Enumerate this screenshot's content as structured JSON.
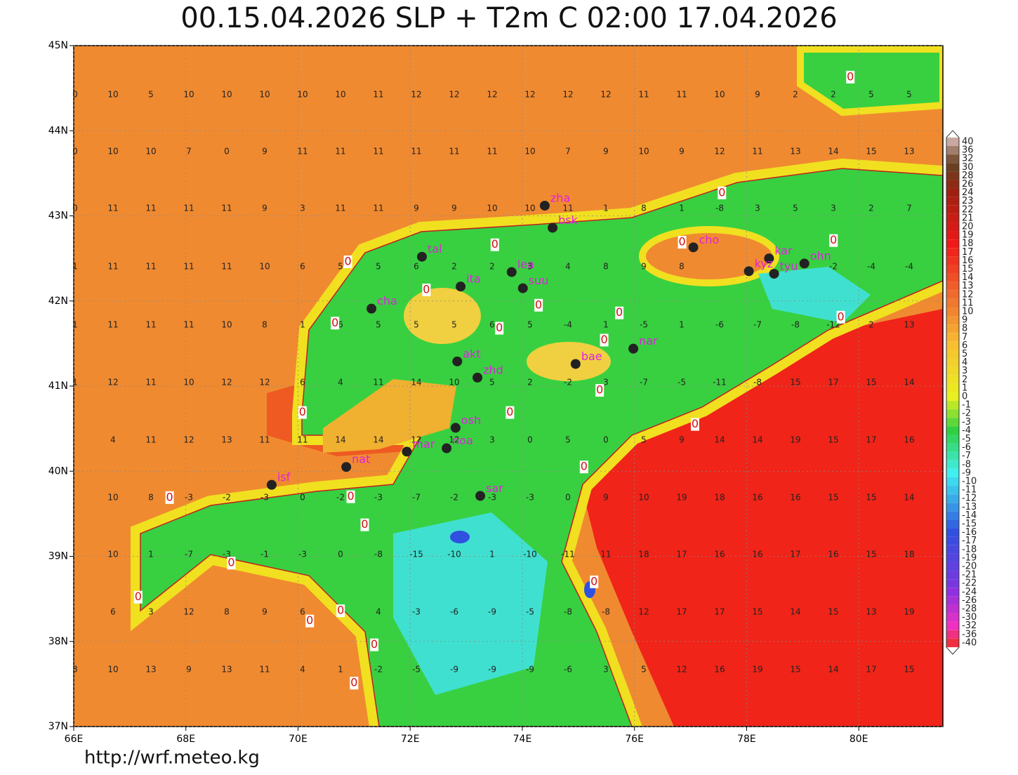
{
  "title": "00.15.04.2026 SLP + T2m C 02:00 17.04.2026",
  "footer": "http://wrf.meteo.kg",
  "map": {
    "xlim": [
      66,
      81.5
    ],
    "ylim": [
      37,
      45
    ],
    "xticks": [
      {
        "value": 66,
        "label": "66E"
      },
      {
        "value": 68,
        "label": "68E"
      },
      {
        "value": 70,
        "label": "70E"
      },
      {
        "value": 72,
        "label": "72E"
      },
      {
        "value": 74,
        "label": "74E"
      },
      {
        "value": 76,
        "label": "76E"
      },
      {
        "value": 78,
        "label": "78E"
      },
      {
        "value": 80,
        "label": "80E"
      }
    ],
    "yticks": [
      {
        "value": 37,
        "label": "37N"
      },
      {
        "value": 38,
        "label": "38N"
      },
      {
        "value": 39,
        "label": "39N"
      },
      {
        "value": 40,
        "label": "40N"
      },
      {
        "value": 41,
        "label": "41N"
      },
      {
        "value": 42,
        "label": "42N"
      },
      {
        "value": 43,
        "label": "43N"
      },
      {
        "value": 44,
        "label": "44N"
      },
      {
        "value": 45,
        "label": "45N"
      }
    ],
    "cities": [
      {
        "name": "zha",
        "lon": 74.4,
        "lat": 43.12
      },
      {
        "name": "bsk",
        "lon": 74.54,
        "lat": 42.86
      },
      {
        "name": "tal",
        "lon": 72.21,
        "lat": 42.52
      },
      {
        "name": "lea",
        "lon": 73.81,
        "lat": 42.34
      },
      {
        "name": "ita",
        "lon": 72.9,
        "lat": 42.17
      },
      {
        "name": "suu",
        "lon": 74.01,
        "lat": 42.15
      },
      {
        "name": "cha",
        "lon": 71.31,
        "lat": 41.91
      },
      {
        "name": "cho",
        "lon": 77.05,
        "lat": 42.63
      },
      {
        "name": "kar",
        "lon": 78.4,
        "lat": 42.5
      },
      {
        "name": "kyz",
        "lon": 78.04,
        "lat": 42.35
      },
      {
        "name": "tyu",
        "lon": 78.49,
        "lat": 42.32
      },
      {
        "name": "ohn",
        "lon": 79.03,
        "lat": 42.44
      },
      {
        "name": "nar",
        "lon": 75.98,
        "lat": 41.44
      },
      {
        "name": "bae",
        "lon": 74.95,
        "lat": 41.26
      },
      {
        "name": "akt",
        "lon": 72.84,
        "lat": 41.29
      },
      {
        "name": "zhd",
        "lon": 73.2,
        "lat": 41.1
      },
      {
        "name": "osh",
        "lon": 72.81,
        "lat": 40.51
      },
      {
        "name": "noa",
        "lon": 72.65,
        "lat": 40.27
      },
      {
        "name": "mar",
        "lon": 71.94,
        "lat": 40.23
      },
      {
        "name": "nat",
        "lon": 70.86,
        "lat": 40.05
      },
      {
        "name": "isf",
        "lon": 69.53,
        "lat": 39.84
      },
      {
        "name": "sar",
        "lon": 73.25,
        "lat": 39.71
      }
    ],
    "contour_labels": [
      {
        "value": 0,
        "lon": 79.85,
        "lat": 44.63
      },
      {
        "value": 0,
        "lon": 77.56,
        "lat": 43.27
      },
      {
        "value": 0,
        "lon": 76.85,
        "lat": 42.69
      },
      {
        "value": 0,
        "lon": 79.55,
        "lat": 42.71
      },
      {
        "value": 0,
        "lon": 73.51,
        "lat": 42.66
      },
      {
        "value": 0,
        "lon": 70.89,
        "lat": 42.46
      },
      {
        "value": 0,
        "lon": 72.29,
        "lat": 42.13
      },
      {
        "value": 0,
        "lon": 74.29,
        "lat": 41.95
      },
      {
        "value": 0,
        "lon": 75.73,
        "lat": 41.86
      },
      {
        "value": 0,
        "lon": 70.66,
        "lat": 41.74
      },
      {
        "value": 0,
        "lon": 73.59,
        "lat": 41.68
      },
      {
        "value": 0,
        "lon": 79.68,
        "lat": 41.81
      },
      {
        "value": 0,
        "lon": 75.46,
        "lat": 41.54
      },
      {
        "value": 0,
        "lon": 75.38,
        "lat": 40.95
      },
      {
        "value": 0,
        "lon": 70.08,
        "lat": 40.69
      },
      {
        "value": 0,
        "lon": 73.78,
        "lat": 40.69
      },
      {
        "value": 0,
        "lon": 77.08,
        "lat": 40.55
      },
      {
        "value": 0,
        "lon": 75.1,
        "lat": 40.05
      },
      {
        "value": 0,
        "lon": 67.71,
        "lat": 39.69
      },
      {
        "value": 0,
        "lon": 70.94,
        "lat": 39.7
      },
      {
        "value": 0,
        "lon": 71.19,
        "lat": 39.37
      },
      {
        "value": 0,
        "lon": 68.81,
        "lat": 38.92
      },
      {
        "value": 0,
        "lon": 75.28,
        "lat": 38.7
      },
      {
        "value": 0,
        "lon": 67.15,
        "lat": 38.52
      },
      {
        "value": 0,
        "lon": 70.76,
        "lat": 38.36
      },
      {
        "value": 0,
        "lon": 70.21,
        "lat": 38.24
      },
      {
        "value": 0,
        "lon": 71.36,
        "lat": 37.96
      },
      {
        "value": 0,
        "lon": 71.0,
        "lat": 37.51
      }
    ],
    "grid_values": [
      [
        0,
        10,
        5,
        10,
        10,
        10,
        10,
        10,
        11,
        12,
        12,
        12,
        12,
        12,
        12,
        11,
        11,
        10,
        9,
        2,
        2,
        5,
        5
      ],
      [
        0,
        10,
        10,
        7,
        0,
        9,
        11,
        11,
        11,
        11,
        11,
        11,
        10,
        7,
        9,
        10,
        9,
        12,
        11,
        13,
        14,
        15,
        13
      ],
      [
        0,
        11,
        11,
        11,
        11,
        9,
        3,
        11,
        11,
        9,
        9,
        10,
        10,
        11,
        1,
        8,
        1,
        -8,
        3,
        5,
        3,
        2,
        7
      ],
      [
        1,
        11,
        11,
        11,
        11,
        10,
        6,
        5,
        5,
        6,
        2,
        2,
        3,
        4,
        8,
        9,
        8,
        null,
        null,
        null,
        -2,
        -4,
        -4
      ],
      [
        1,
        11,
        11,
        11,
        10,
        8,
        1,
        6,
        5,
        5,
        5,
        6,
        5,
        -4,
        1,
        -5,
        1,
        -6,
        -7,
        -8,
        -12,
        2,
        13
      ],
      [
        1,
        12,
        11,
        10,
        12,
        12,
        6,
        4,
        11,
        14,
        10,
        5,
        2,
        -2,
        3,
        -7,
        -5,
        -11,
        -8,
        15,
        17,
        15,
        14
      ],
      [
        null,
        4,
        11,
        12,
        13,
        11,
        11,
        14,
        14,
        12,
        12,
        3,
        0,
        5,
        0,
        5,
        9,
        14,
        14,
        19,
        15,
        17,
        16
      ],
      [
        null,
        10,
        8,
        -3,
        -2,
        -3,
        0,
        -2,
        -3,
        -7,
        -2,
        -3,
        -3,
        0,
        9,
        10,
        19,
        18,
        16,
        16,
        15,
        15,
        14
      ],
      [
        null,
        10,
        1,
        -7,
        -3,
        -1,
        -3,
        0,
        -8,
        -15,
        -10,
        1,
        -10,
        -11,
        11,
        18,
        17,
        16,
        16,
        17,
        16,
        15,
        18
      ],
      [
        null,
        6,
        3,
        12,
        8,
        9,
        6,
        0,
        4,
        -3,
        -6,
        -9,
        -5,
        -8,
        -8,
        12,
        17,
        17,
        15,
        14,
        15,
        13,
        19
      ],
      [
        3,
        10,
        13,
        9,
        13,
        11,
        4,
        1,
        -2,
        -5,
        -9,
        -9,
        -9,
        -6,
        3,
        5,
        12,
        16,
        19,
        15,
        14,
        17,
        15
      ]
    ]
  },
  "colorbar": {
    "levels": [
      40,
      36,
      32,
      30,
      28,
      26,
      24,
      23,
      22,
      21,
      20,
      19,
      18,
      17,
      16,
      15,
      14,
      13,
      12,
      11,
      10,
      9,
      8,
      7,
      6,
      5,
      4,
      3,
      2,
      1,
      0,
      -1,
      -2,
      -3,
      -4,
      -5,
      -6,
      -7,
      -8,
      -9,
      -10,
      -11,
      -12,
      -13,
      -14,
      -15,
      -16,
      -17,
      -18,
      -19,
      -20,
      -21,
      -22,
      -24,
      -26,
      -28,
      -30,
      -32,
      -36,
      -40
    ],
    "color_stops": [
      {
        "value": 40,
        "color": "#c8a8a0"
      },
      {
        "value": 30,
        "color": "#6a4020"
      },
      {
        "value": 24,
        "color": "#a02010"
      },
      {
        "value": 18,
        "color": "#f01818"
      },
      {
        "value": 11,
        "color": "#f07830"
      },
      {
        "value": 6,
        "color": "#f8c030"
      },
      {
        "value": 0,
        "color": "#e8f020"
      },
      {
        "value": -4,
        "color": "#30d040"
      },
      {
        "value": -9,
        "color": "#40f0f0"
      },
      {
        "value": -16,
        "color": "#3050e0"
      },
      {
        "value": -24,
        "color": "#9030e0"
      },
      {
        "value": -32,
        "color": "#f030c0"
      },
      {
        "value": -40,
        "color": "#f03040"
      }
    ]
  }
}
